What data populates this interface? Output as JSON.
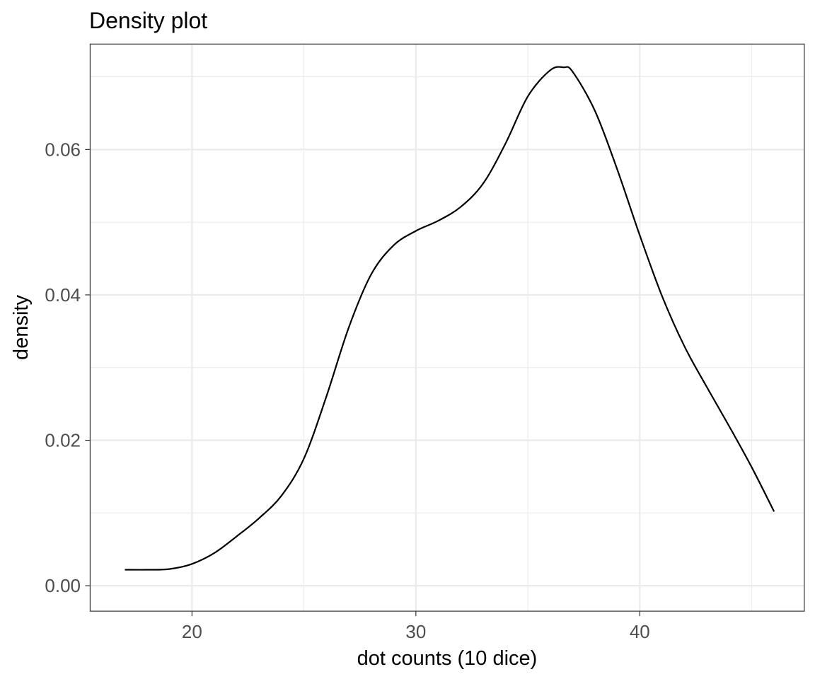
{
  "chart_data": {
    "type": "line",
    "title": "Density plot",
    "xlabel": "dot counts (10 dice)",
    "ylabel": "density",
    "xlim": [
      15.45,
      47.35
    ],
    "ylim": [
      -0.0035,
      0.0745
    ],
    "x_ticks": [
      20,
      30,
      40
    ],
    "x_tick_labels": [
      "20",
      "30",
      "40"
    ],
    "x_minor_ticks": [
      25,
      35,
      45
    ],
    "y_ticks": [
      0,
      0.02,
      0.04,
      0.06
    ],
    "y_tick_labels": [
      "0.00",
      "0.02",
      "0.04",
      "0.06"
    ],
    "y_minor_ticks": [
      0.01,
      0.03,
      0.05,
      0.07
    ],
    "grid": true,
    "series": [
      {
        "color": "#000000",
        "x": [
          17,
          18,
          19,
          20,
          21,
          22,
          23,
          24,
          25,
          26,
          27,
          28,
          29,
          30,
          31,
          32,
          33,
          34,
          35,
          36,
          36.6,
          37,
          38,
          39,
          40,
          41,
          42,
          43,
          44,
          45,
          46
        ],
        "y": [
          0.0022,
          0.0022,
          0.0023,
          0.003,
          0.0045,
          0.0068,
          0.0093,
          0.0124,
          0.0175,
          0.026,
          0.0355,
          0.0428,
          0.0468,
          0.0488,
          0.0502,
          0.0521,
          0.0553,
          0.0608,
          0.0673,
          0.0709,
          0.0713,
          0.0707,
          0.0653,
          0.0572,
          0.0482,
          0.0398,
          0.0329,
          0.0273,
          0.0219,
          0.0163,
          0.0102
        ]
      }
    ]
  }
}
